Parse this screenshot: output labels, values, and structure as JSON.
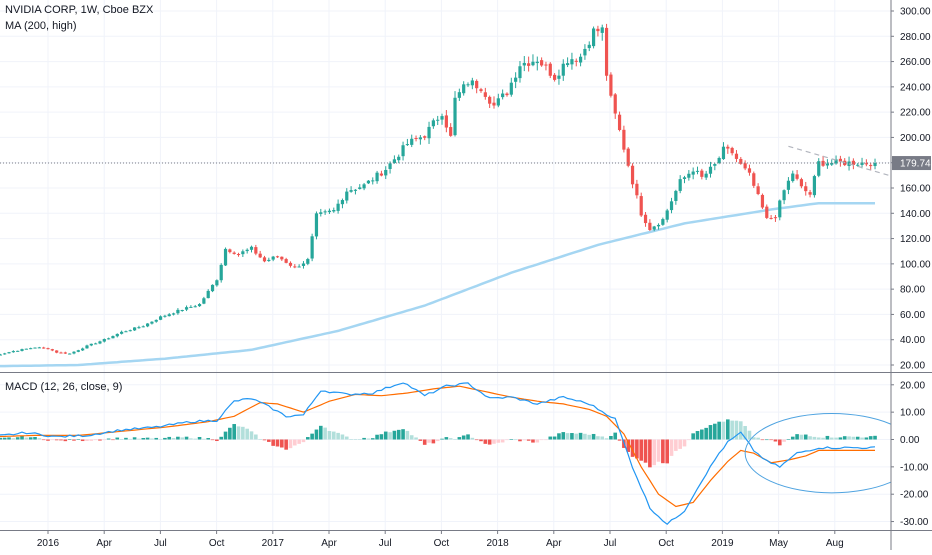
{
  "header": {
    "title": "NVIDIA CORP, 1W, Cboe BZX",
    "ma_label": "MA (200, high)"
  },
  "macd": {
    "label": "MACD (12, 26, close, 9)"
  },
  "colors": {
    "up": "#26a69a",
    "down": "#ef5350",
    "ma": "#a5d6f2",
    "macd_line": "#2196f3",
    "signal_line": "#ff6d00",
    "hist_up_strong": "#26a69a",
    "hist_up_weak": "#b2dfdb",
    "hist_down_strong": "#ef5350",
    "hist_down_weak": "#ffcdd2",
    "price_line": "#787b86",
    "ellipse": "#4fa3e0",
    "last_price_bg": "#787b86"
  },
  "chart_data": [
    {
      "type": "candlestick",
      "title": "NVIDIA CORP, 1W, Cboe BZX",
      "last_price_label": "179.74",
      "y_ticks": [
        "300.00",
        "280.00",
        "260.00",
        "240.00",
        "220.00",
        "200.00",
        "180.00",
        "160.00",
        "140.00",
        "120.00",
        "100.00",
        "80.00",
        "60.00",
        "40.00",
        "20.00"
      ],
      "ylim": [
        11,
        304
      ],
      "x_ticks": [
        "2016",
        "Apr",
        "Jul",
        "Oct",
        "2017",
        "Apr",
        "Jul",
        "Oct",
        "2018",
        "Apr",
        "Jul",
        "Oct",
        "2019",
        "May",
        "Aug"
      ],
      "weeks_before_2016": 13,
      "weeks_after_2016": 191,
      "close_anchors": [
        [
          0,
          27
        ],
        [
          5,
          31
        ],
        [
          10,
          34
        ],
        [
          13,
          33
        ],
        [
          15,
          30
        ],
        [
          18,
          29
        ],
        [
          22,
          35
        ],
        [
          26,
          40
        ],
        [
          30,
          46
        ],
        [
          35,
          51
        ],
        [
          39,
          58
        ],
        [
          44,
          64
        ],
        [
          48,
          68
        ],
        [
          52,
          88
        ],
        [
          54,
          112
        ],
        [
          57,
          108
        ],
        [
          60,
          112
        ],
        [
          63,
          102
        ],
        [
          66,
          106
        ],
        [
          70,
          97
        ],
        [
          73,
          103
        ],
        [
          75,
          138
        ],
        [
          79,
          142
        ],
        [
          82,
          158
        ],
        [
          86,
          162
        ],
        [
          91,
          175
        ],
        [
          96,
          195
        ],
        [
          100,
          202
        ],
        [
          104,
          220
        ],
        [
          106,
          200
        ],
        [
          107,
          230
        ],
        [
          110,
          244
        ],
        [
          113,
          240
        ],
        [
          116,
          225
        ],
        [
          119,
          236
        ],
        [
          122,
          258
        ],
        [
          126,
          262
        ],
        [
          130,
          248
        ],
        [
          133,
          262
        ],
        [
          136,
          264
        ],
        [
          139,
          284
        ],
        [
          141,
          285
        ],
        [
          142,
          250
        ],
        [
          143,
          230
        ],
        [
          145,
          205
        ],
        [
          148,
          165
        ],
        [
          150,
          140
        ],
        [
          152,
          128
        ],
        [
          155,
          135
        ],
        [
          157,
          150
        ],
        [
          159,
          165
        ],
        [
          162,
          175
        ],
        [
          164,
          168
        ],
        [
          167,
          178
        ],
        [
          169,
          190
        ],
        [
          171,
          188
        ],
        [
          173,
          178
        ],
        [
          175,
          170
        ],
        [
          177,
          153
        ],
        [
          179,
          135
        ],
        [
          181,
          138
        ],
        [
          183,
          158
        ],
        [
          185,
          172
        ],
        [
          187,
          160
        ],
        [
          189,
          155
        ],
        [
          191,
          180
        ]
      ],
      "overlays": [
        {
          "type": "line",
          "name": "MA (200, high)",
          "values_anchors": [
            [
              0,
              19
            ],
            [
              20,
              20
            ],
            [
              40,
              25
            ],
            [
              60,
              32
            ],
            [
              80,
              47
            ],
            [
              100,
              67
            ],
            [
              120,
              93
            ],
            [
              140,
              115
            ],
            [
              160,
              132
            ],
            [
              180,
              143
            ],
            [
              191,
              148
            ]
          ]
        },
        {
          "type": "dashed-trendline",
          "points": [
            [
              171,
              193
            ],
            [
              191,
              170
            ]
          ]
        }
      ]
    },
    {
      "type": "macd",
      "title": "MACD (12, 26, close, 9)",
      "y_ticks": [
        "20.00",
        "10.00",
        "0.00",
        "-10.00",
        "-20.00",
        "-30.00"
      ],
      "ylim": [
        -32,
        22
      ],
      "macd_anchors": [
        [
          0,
          1.0
        ],
        [
          8,
          2.5
        ],
        [
          15,
          1.0
        ],
        [
          22,
          1.5
        ],
        [
          30,
          3.5
        ],
        [
          38,
          4.5
        ],
        [
          46,
          6.5
        ],
        [
          52,
          7.0
        ],
        [
          56,
          14.0
        ],
        [
          60,
          15.0
        ],
        [
          64,
          12.0
        ],
        [
          68,
          8.5
        ],
        [
          72,
          9.0
        ],
        [
          76,
          18.0
        ],
        [
          82,
          16.5
        ],
        [
          88,
          17.0
        ],
        [
          95,
          21.0
        ],
        [
          100,
          16.0
        ],
        [
          105,
          19.5
        ],
        [
          110,
          20.5
        ],
        [
          115,
          15.0
        ],
        [
          120,
          15.5
        ],
        [
          126,
          13.0
        ],
        [
          132,
          15.5
        ],
        [
          138,
          13.0
        ],
        [
          144,
          7.5
        ],
        [
          148,
          -10.0
        ],
        [
          152,
          -25.0
        ],
        [
          156,
          -31.0
        ],
        [
          160,
          -26.0
        ],
        [
          164,
          -15.0
        ],
        [
          168,
          -5.0
        ],
        [
          170,
          -1.0
        ],
        [
          173,
          2.5
        ],
        [
          176,
          -4.0
        ],
        [
          179,
          -8.0
        ],
        [
          182,
          -10.0
        ],
        [
          186,
          -5.0
        ],
        [
          191,
          -3.0
        ]
      ],
      "signal_anchors": [
        [
          0,
          1.0
        ],
        [
          10,
          1.5
        ],
        [
          20,
          1.5
        ],
        [
          30,
          3.0
        ],
        [
          40,
          4.5
        ],
        [
          50,
          6.5
        ],
        [
          56,
          8.5
        ],
        [
          62,
          13.5
        ],
        [
          66,
          13.0
        ],
        [
          72,
          10.0
        ],
        [
          78,
          14.0
        ],
        [
          84,
          16.5
        ],
        [
          90,
          16.0
        ],
        [
          96,
          17.0
        ],
        [
          102,
          18.5
        ],
        [
          108,
          19.5
        ],
        [
          114,
          17.5
        ],
        [
          120,
          15.5
        ],
        [
          126,
          14.0
        ],
        [
          132,
          13.0
        ],
        [
          138,
          11.0
        ],
        [
          142,
          8.5
        ],
        [
          146,
          2.0
        ],
        [
          150,
          -10.0
        ],
        [
          154,
          -20.0
        ],
        [
          158,
          -24.5
        ],
        [
          162,
          -23.0
        ],
        [
          166,
          -15.0
        ],
        [
          170,
          -8.0
        ],
        [
          173,
          -4.0
        ],
        [
          176,
          -5.0
        ],
        [
          180,
          -8.5
        ],
        [
          184,
          -7.5
        ],
        [
          188,
          -6.0
        ],
        [
          191,
          -4.0
        ]
      ],
      "annotation": {
        "type": "ellipse",
        "center_week": 181,
        "center_value": -5,
        "rx_weeks": 20,
        "ry_value": 14.5
      }
    }
  ]
}
